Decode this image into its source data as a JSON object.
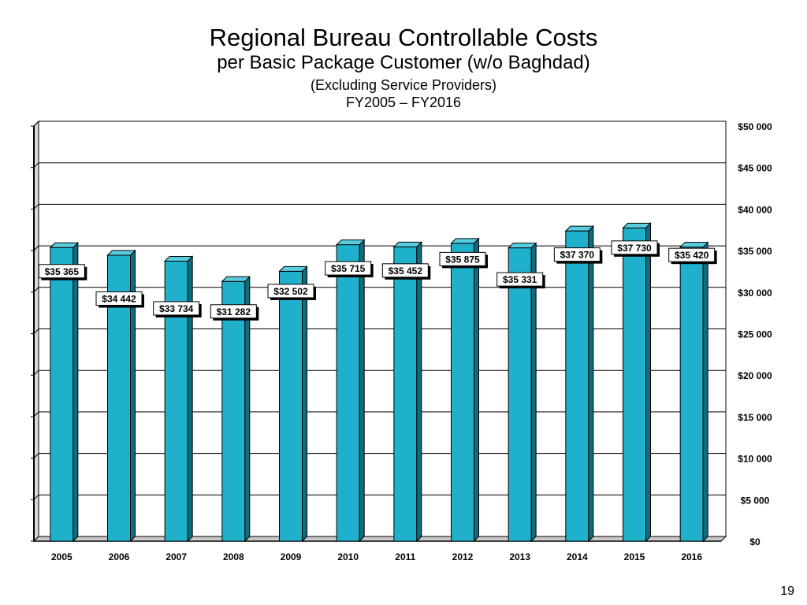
{
  "page": {
    "number": "19"
  },
  "colors": {
    "bar_front": "#1fb1cc",
    "bar_side": "#0f6d7f",
    "bar_top": "#58cde0",
    "label_bg": "#ffffff"
  },
  "chart_data": {
    "type": "bar",
    "title": "Regional Bureau Controllable Costs",
    "subtitle": "per Basic Package Customer (w/o Baghdad)",
    "subtitle2": "(Excluding Service Providers)",
    "subtitle3": "FY2005 – FY2016",
    "xlabel": "",
    "ylabel": "",
    "categories": [
      "2005",
      "2006",
      "2007",
      "2008",
      "2009",
      "2010",
      "2011",
      "2012",
      "2013",
      "2014",
      "2015",
      "2016"
    ],
    "values": [
      35365,
      34442,
      33734,
      31282,
      32502,
      35715,
      35452,
      35875,
      35331,
      37370,
      37730,
      35420
    ],
    "data_labels": [
      "$35 365",
      "$34 442",
      "$33 734",
      "$31 282",
      "$32 502",
      "$35 715",
      "$35 452",
      "$35 875",
      "$35 331",
      "$37 370",
      "$37 730",
      "$35 420"
    ],
    "ylim": [
      0,
      50000
    ],
    "yticks": [
      0,
      5000,
      10000,
      15000,
      20000,
      25000,
      30000,
      35000,
      40000,
      45000,
      50000
    ],
    "ytick_labels": [
      "$0",
      "$5 000",
      "$10 000",
      "$15 000",
      "$20 000",
      "$25 000",
      "$30 000",
      "$35 000",
      "$40 000",
      "$45 000",
      "$50 000"
    ],
    "y_axis_side": "right",
    "grid": true,
    "legend": "none"
  }
}
